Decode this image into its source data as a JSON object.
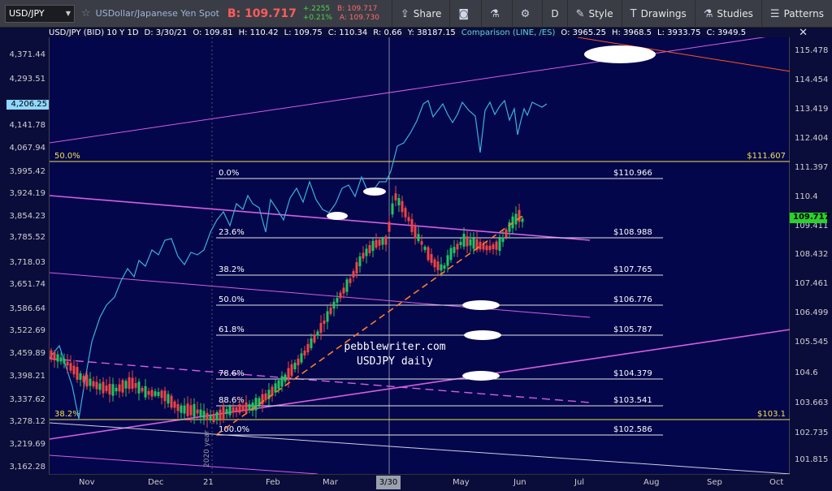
{
  "toolbar": {
    "symbol": "USD/JPY",
    "description": "USDollar/Japanese Yen Spot",
    "bid": "B: 109.717",
    "chg_abs": "+.2255",
    "chg_pct": "+0.21%",
    "bid_small": "B: 109.717",
    "ask_small": "A: 109.730",
    "buttons": [
      {
        "icon": "share-icon",
        "label": "Share"
      },
      {
        "icon": "camera-icon",
        "label": ""
      },
      {
        "icon": "flask-icon",
        "label": ""
      },
      {
        "icon": "gear-icon",
        "label": ""
      },
      {
        "icon": "period",
        "label": "D"
      },
      {
        "icon": "brush-icon",
        "label": "Style"
      },
      {
        "icon": "text-icon",
        "label": "Drawings"
      },
      {
        "icon": "flask-icon",
        "label": "Studies"
      },
      {
        "icon": "patterns-icon",
        "label": "Patterns"
      }
    ]
  },
  "infobar": {
    "title": "USD/JPY (BID) 10 Y 1D",
    "date": "D: 3/30/21",
    "open": "O: 109.81",
    "high": "H: 110.42",
    "low": "L: 109.75",
    "close": "C: 110.34",
    "range": "R: 0.66",
    "y": "Y: 38187.15",
    "comparison": "Comparison (LINE, /ES)",
    "cmp_open": "O: 3965.25",
    "cmp_high": "H: 3968.5",
    "cmp_low": "L: 3933.75",
    "cmp_close": "C: 3949.5"
  },
  "left_axis": [
    "4,371.44",
    "4,293.51",
    "4,141.78",
    "4,067.94",
    "3,995.42",
    "3,924.19",
    "3,854.23",
    "3,785.52",
    "3,718.03",
    "3,651.74",
    "3,586.64",
    "3,522.69",
    "3,459.89",
    "3,398.21",
    "3,337.62",
    "3,278.12",
    "3,219.69",
    "3,162.28"
  ],
  "left_tag": "4,206.25",
  "right_axis": [
    "115.478",
    "114.454",
    "113.419",
    "112.404",
    "111.397",
    "110.4",
    "109.411",
    "108.432",
    "107.461",
    "106.499",
    "105.545",
    "104.6",
    "103.663",
    "102.735",
    "101.815"
  ],
  "right_tag": "109.717",
  "x_axis": [
    "Nov",
    "Dec",
    "21",
    "Feb",
    "Mar",
    "3/30",
    "May",
    "Jun",
    "Jul",
    "Aug",
    "Sep",
    "Oct"
  ],
  "fib": {
    "levels": [
      {
        "pct": "0.0%",
        "price": "$110.966"
      },
      {
        "pct": "23.6%",
        "price": "$108.988"
      },
      {
        "pct": "38.2%",
        "price": "$107.765"
      },
      {
        "pct": "50.0%",
        "price": "$106.776"
      },
      {
        "pct": "61.8%",
        "price": "$105.787"
      },
      {
        "pct": "78.6%",
        "price": "$104.379"
      },
      {
        "pct": "88.6%",
        "price": "$103.541"
      },
      {
        "pct": "100.0%",
        "price": "$102.586"
      }
    ],
    "yellow": [
      {
        "pct": "50.0%",
        "price": "$111.607"
      },
      {
        "pct": "38.2%",
        "price": "$103.1"
      }
    ]
  },
  "watermark": {
    "line1": "pebblewriter.com",
    "line2": "USDJPY daily"
  },
  "vertical_label": "2020 year",
  "colors": {
    "candle_up": "#22c55e",
    "candle_down": "#ef4444",
    "compare": "#3ab0e0",
    "channel": "#d35fe0",
    "fib": "#ffffff",
    "yellow": "#f2e34a",
    "trend": "#ff7a2a"
  }
}
